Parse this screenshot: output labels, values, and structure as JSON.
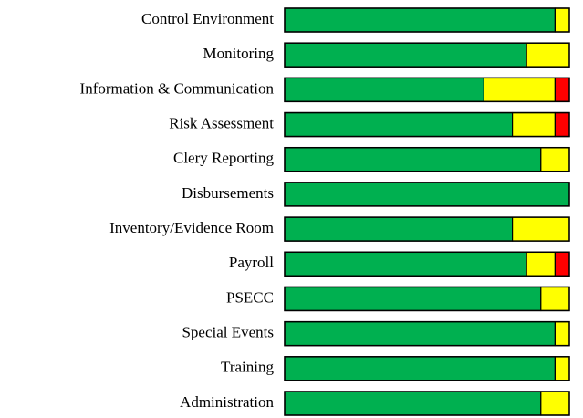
{
  "chart_data": {
    "type": "stacked-bar-horizontal",
    "categories": [
      "Control Environment",
      "Monitoring",
      "Information & Communication",
      "Risk Assessment",
      "Clery Reporting",
      "Disbursements",
      "Inventory/Evidence Room",
      "Payroll",
      "PSECC",
      "Special Events",
      "Training",
      "Administration"
    ],
    "series": [
      {
        "color": "#00b050",
        "values": [
          95,
          85,
          70,
          80,
          90,
          100,
          80,
          85,
          90,
          95,
          95,
          90
        ]
      },
      {
        "color": "#ffff00",
        "values": [
          5,
          15,
          25,
          15,
          10,
          0,
          20,
          10,
          10,
          5,
          5,
          10
        ]
      },
      {
        "color": "#ff0000",
        "values": [
          0,
          0,
          5,
          5,
          0,
          0,
          0,
          5,
          0,
          0,
          0,
          0
        ]
      }
    ],
    "xlim": [
      0,
      100
    ]
  }
}
